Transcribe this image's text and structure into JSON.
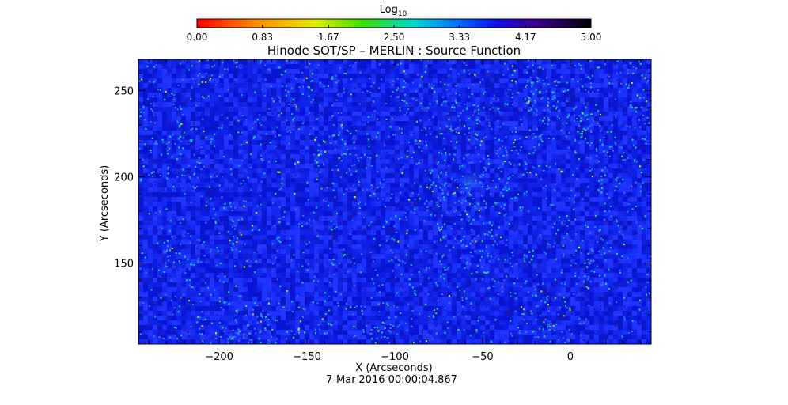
{
  "chart_data": {
    "type": "heatmap",
    "title": "Hinode SOT/SP – MERLIN : Source Function",
    "xlabel": "X (Arcseconds)",
    "ylabel": "Y (Arcseconds)",
    "timestamp": "7-Mar-2016 00:00:04.867",
    "xlim": [
      -246,
      46
    ],
    "ylim": [
      103,
      268
    ],
    "x_ticks": [
      -200,
      -150,
      -100,
      -50,
      0
    ],
    "x_tick_labels": [
      "−200",
      "−150",
      "−100",
      "−50",
      "0"
    ],
    "y_ticks": [
      150,
      200,
      250
    ],
    "y_tick_labels": [
      "150",
      "200",
      "250"
    ],
    "colorbar": {
      "title_base": "Log",
      "title_sub": "10",
      "range": [
        0.0,
        5.0
      ],
      "ticks": [
        0.0,
        0.83,
        1.67,
        2.5,
        3.33,
        4.17,
        5.0
      ],
      "tick_labels": [
        "0.00",
        "0.83",
        "1.67",
        "2.50",
        "3.33",
        "4.17",
        "5.00"
      ],
      "colormap": "rainbow (red → yellow → green → cyan → blue → purple → black)"
    },
    "background_level": 3.8,
    "field_description": "granular noise field, dominant values ~3.6–4.0 (blue) with scattered cyan/green specks and a faint diffuse patch near x=-55, y=198"
  }
}
